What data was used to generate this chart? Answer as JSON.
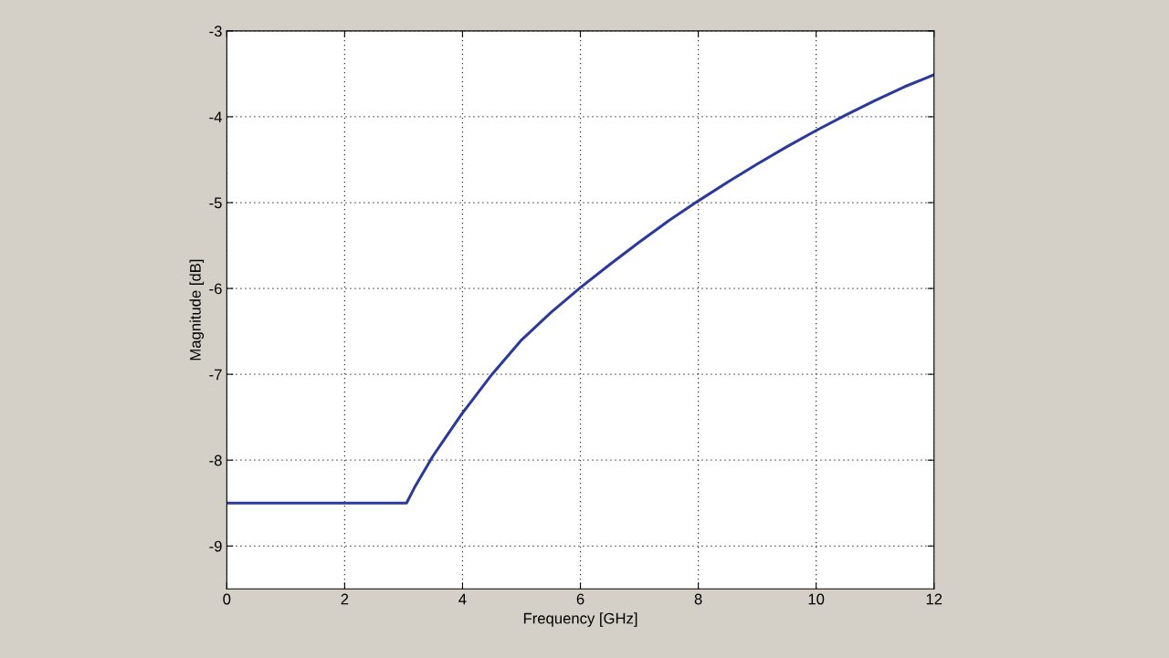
{
  "chart_data": {
    "type": "line",
    "xlabel": "Frequency [GHz]",
    "ylabel": "Magnitude [dB]",
    "x": [
      0,
      1,
      2,
      3,
      3.05,
      3.2,
      3.5,
      3.75,
      4,
      4.5,
      5,
      5.5,
      6,
      6.5,
      7,
      7.5,
      8,
      8.5,
      9,
      9.5,
      10,
      10.5,
      11,
      11.5,
      12
    ],
    "series": [
      {
        "color": "#2b3a9a",
        "values": [
          -8.5,
          -8.5,
          -8.5,
          -8.5,
          -8.5,
          -8.3,
          -7.95,
          -7.7,
          -7.45,
          -7.0,
          -6.6,
          -6.28,
          -5.99,
          -5.72,
          -5.46,
          -5.21,
          -4.98,
          -4.76,
          -4.55,
          -4.35,
          -4.16,
          -3.98,
          -3.81,
          -3.65,
          -3.51
        ]
      }
    ],
    "xlim": [
      0,
      12
    ],
    "ylim": [
      -9.5,
      -3
    ],
    "xticks": [
      0,
      2,
      4,
      6,
      8,
      10,
      12
    ],
    "yticks": [
      -9,
      -8,
      -7,
      -6,
      -5,
      -4,
      -3
    ],
    "grid": true,
    "line_style": "solid",
    "marker": "none",
    "legend": false
  }
}
